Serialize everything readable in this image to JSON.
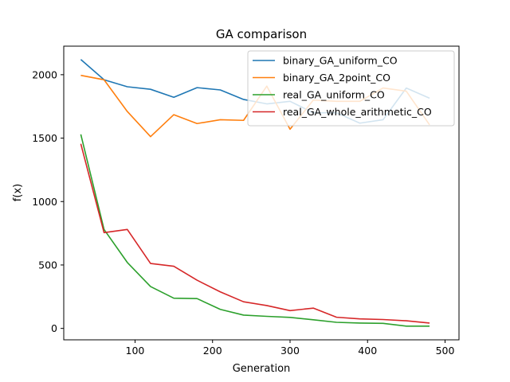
{
  "chart_data": {
    "type": "line",
    "title": "GA comparison",
    "xlabel": "Generation",
    "ylabel": "f(x)",
    "xlim": [
      8,
      518
    ],
    "ylim": [
      -90,
      2225
    ],
    "xticks": [
      100,
      200,
      300,
      400,
      500
    ],
    "yticks": [
      0,
      500,
      1000,
      1500,
      2000
    ],
    "grid": false,
    "legend_position": "top-right",
    "x": [
      30,
      60,
      90,
      120,
      150,
      180,
      210,
      240,
      270,
      300,
      330,
      360,
      390,
      420,
      450,
      480
    ],
    "series": [
      {
        "name": "binary_GA_uniform_CO",
        "color": "#1f77b4",
        "values": [
          2120,
          1960,
          1905,
          1885,
          1822,
          1898,
          1880,
          1805,
          1770,
          1790,
          1700,
          1700,
          1618,
          1645,
          1895,
          1815
        ]
      },
      {
        "name": "binary_GA_2point_CO",
        "color": "#ff7f0e",
        "values": [
          1995,
          1960,
          1710,
          1512,
          1685,
          1615,
          1645,
          1640,
          1910,
          1570,
          1800,
          1790,
          1790,
          1895,
          1870,
          1605
        ]
      },
      {
        "name": "real_GA_uniform_CO",
        "color": "#2ca02c",
        "values": [
          1530,
          780,
          520,
          330,
          238,
          235,
          150,
          105,
          95,
          87,
          68,
          48,
          42,
          40,
          18,
          18
        ]
      },
      {
        "name": "real_GA_whole_arithmetic_CO",
        "color": "#d62728",
        "values": [
          1455,
          755,
          780,
          512,
          490,
          380,
          288,
          210,
          180,
          140,
          160,
          88,
          75,
          70,
          60,
          42
        ]
      }
    ]
  }
}
